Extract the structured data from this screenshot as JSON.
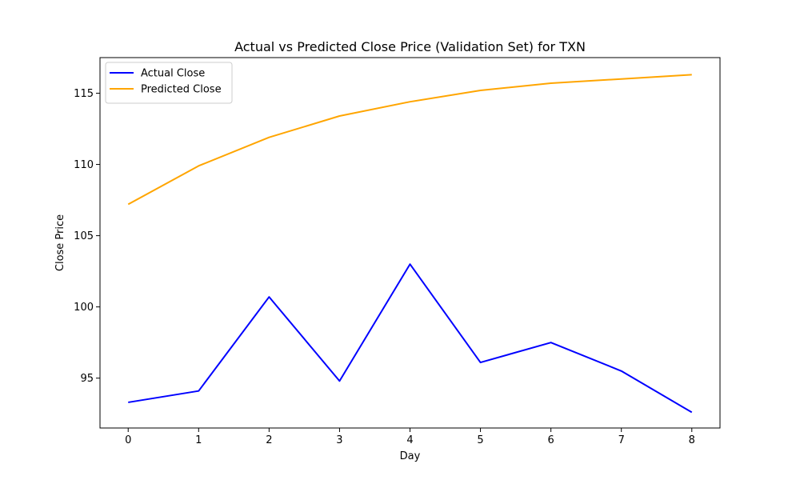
{
  "chart_data": {
    "type": "line",
    "title": "Actual vs Predicted Close Price (Validation Set) for TXN",
    "xlabel": "Day",
    "ylabel": "Close Price",
    "x": [
      0,
      1,
      2,
      3,
      4,
      5,
      6,
      7,
      8
    ],
    "xticks": [
      "0",
      "1",
      "2",
      "3",
      "4",
      "5",
      "6",
      "7",
      "8"
    ],
    "yticks": [
      95,
      100,
      105,
      110,
      115
    ],
    "ytick_labels": [
      "95",
      "100",
      "105",
      "110",
      "115"
    ],
    "xlim": [
      -0.4,
      8.4
    ],
    "ylim": [
      91.5,
      117.5
    ],
    "grid": false,
    "legend_position": "upper-left",
    "series": [
      {
        "name": "Actual Close",
        "color": "#0000ff",
        "values": [
          93.3,
          94.1,
          100.7,
          94.8,
          103.0,
          96.1,
          97.5,
          95.5,
          92.6
        ]
      },
      {
        "name": "Predicted Close",
        "color": "#ffa500",
        "values": [
          107.2,
          109.9,
          111.9,
          113.4,
          114.4,
          115.2,
          115.7,
          116.0,
          116.3
        ]
      }
    ]
  }
}
